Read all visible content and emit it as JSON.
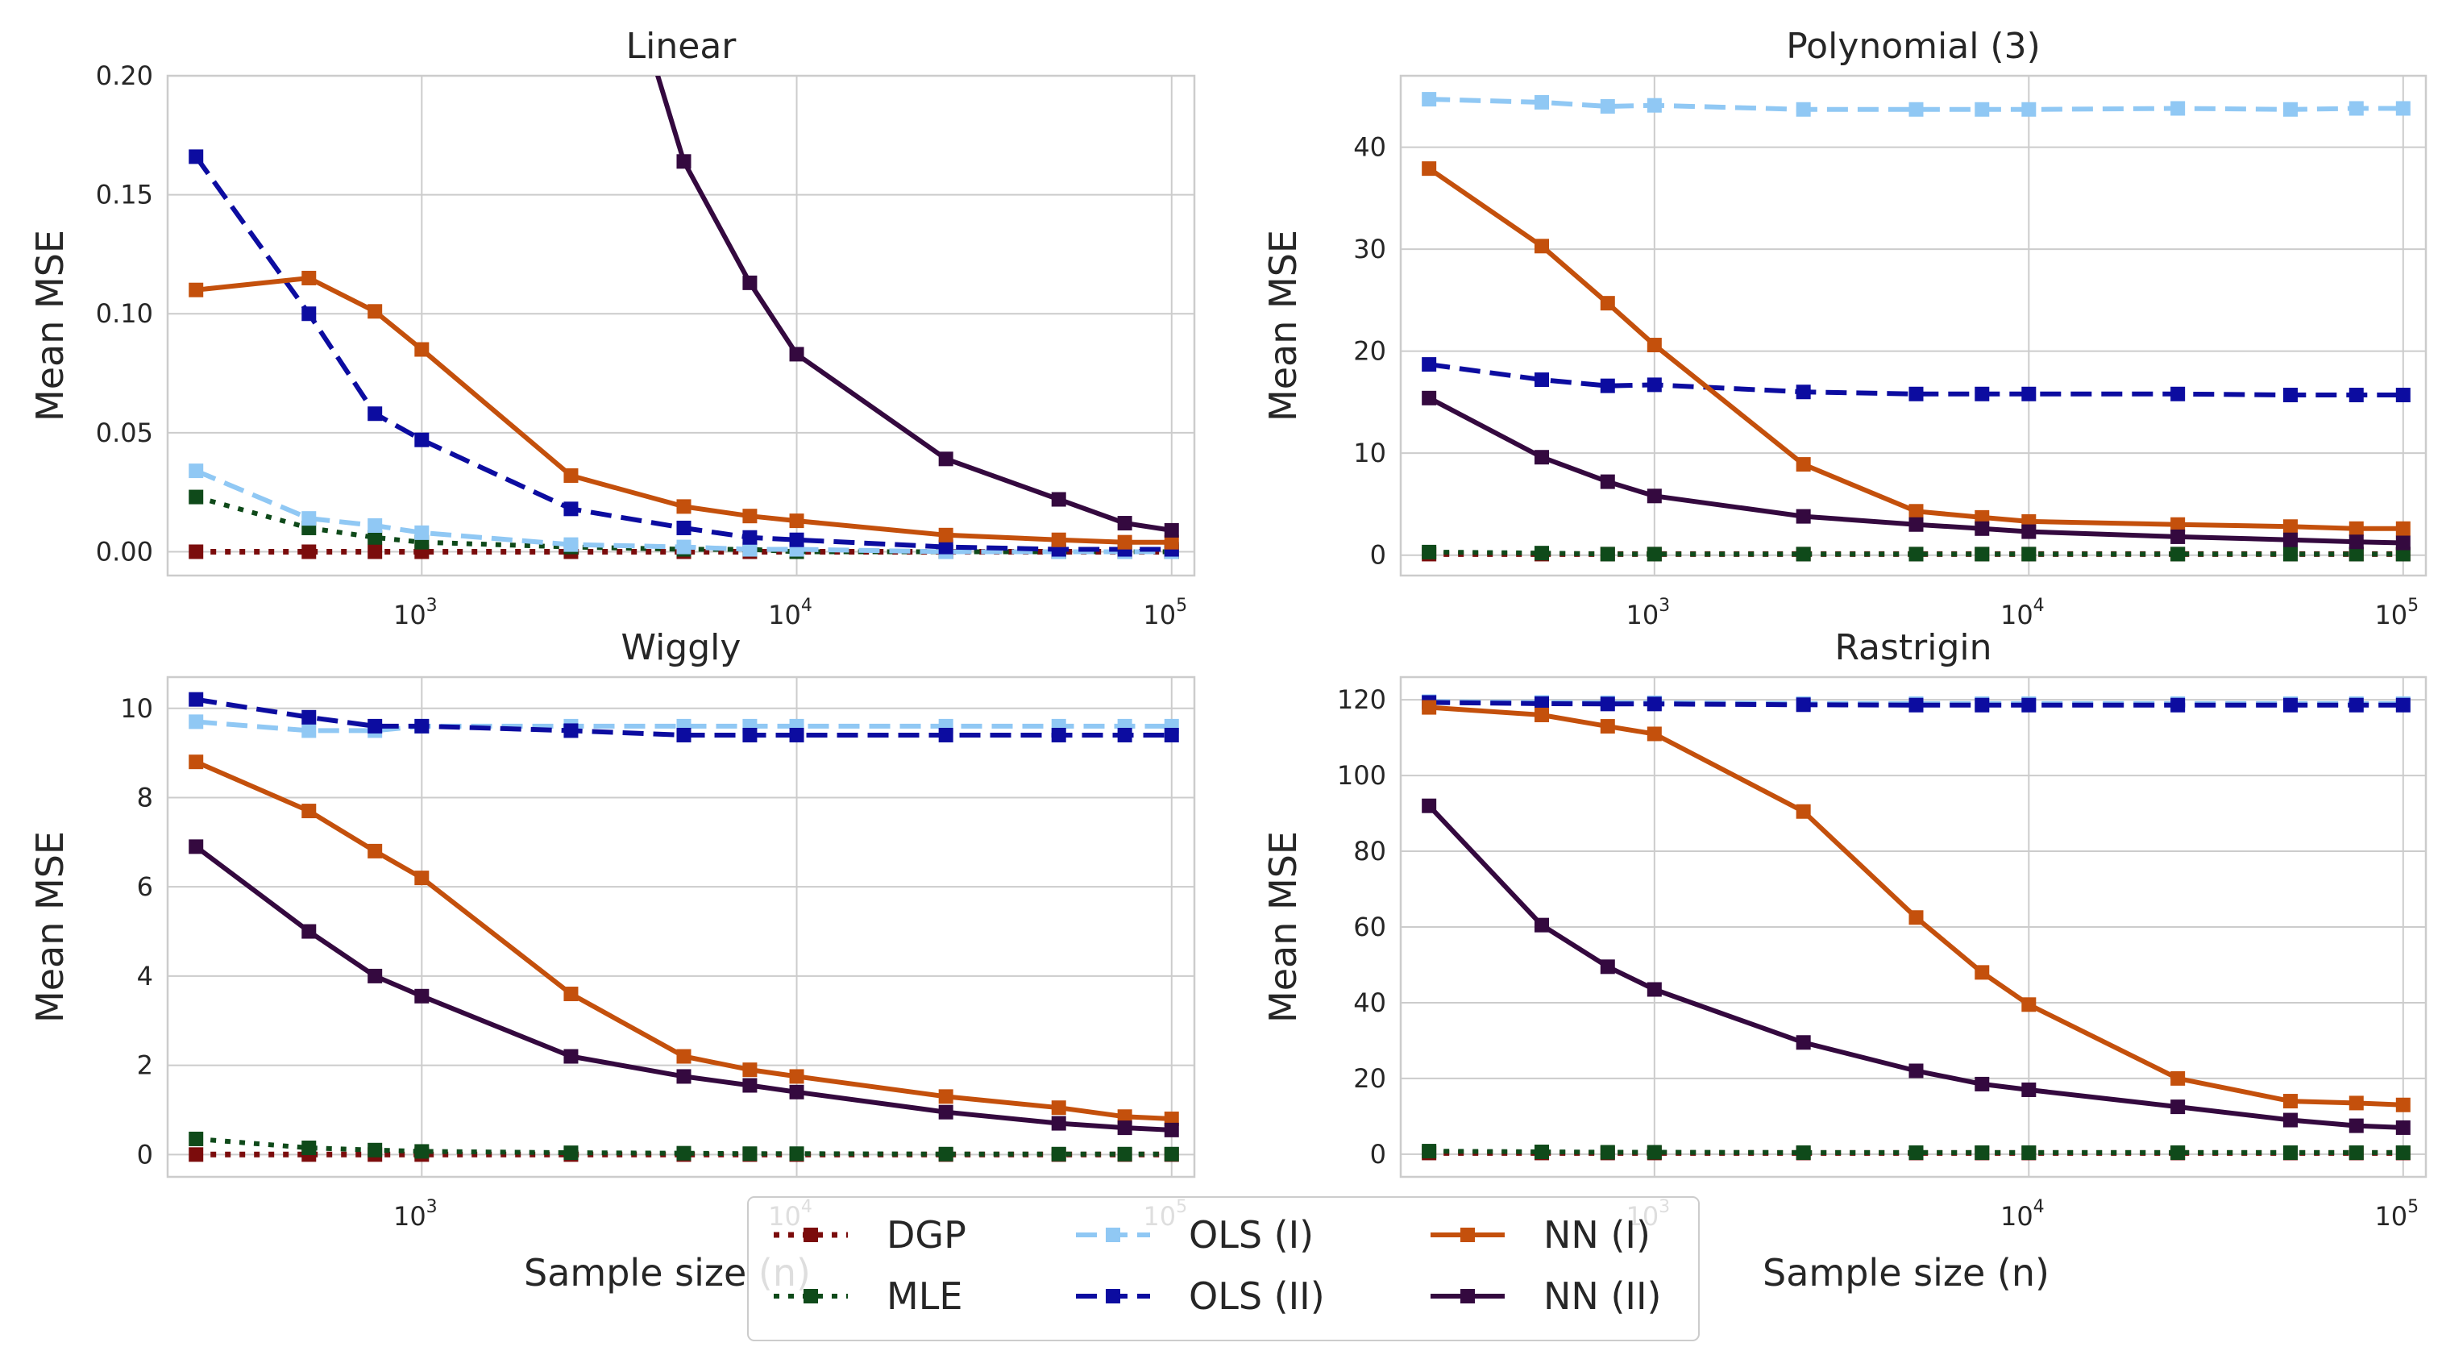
{
  "legend": {
    "items": [
      {
        "label": "DGP",
        "series": "dgp"
      },
      {
        "label": "MLE",
        "series": "mle"
      },
      {
        "label": "OLS (I)",
        "series": "ols1"
      },
      {
        "label": "OLS (II)",
        "series": "ols2"
      },
      {
        "label": "NN (I)",
        "series": "nn1"
      },
      {
        "label": "NN (II)",
        "series": "nn2"
      }
    ]
  },
  "styles": {
    "dgp": {
      "color": "#7b0c0c",
      "dash": "dot",
      "width": 7
    },
    "mle": {
      "color": "#0f4a1a",
      "dash": "dot",
      "width": 6
    },
    "ols1": {
      "color": "#90c8f4",
      "dash": "dash",
      "width": 6
    },
    "ols2": {
      "color": "#0c0ca0",
      "dash": "dash",
      "width": 6
    },
    "nn1": {
      "color": "#c4500c",
      "dash": "solid",
      "width": 6
    },
    "nn2": {
      "color": "#34093f",
      "dash": "solid",
      "width": 6
    }
  },
  "chart_data": [
    {
      "type": "line",
      "title": "Linear",
      "xlabel": "",
      "ylabel": "Mean MSE",
      "xscale": "log",
      "xlim": [
        210,
        115000
      ],
      "ylim": [
        -0.01,
        0.2
      ],
      "yticks": [
        0.0,
        0.05,
        0.1,
        0.15,
        0.2
      ],
      "ytick_labels": [
        "0.00",
        "0.05",
        "0.10",
        "0.15",
        "0.20"
      ],
      "xticks": [
        1000,
        10000,
        100000
      ],
      "x": [
        250,
        500,
        750,
        1000,
        2500,
        5000,
        7500,
        10000,
        25000,
        50000,
        75000,
        100000
      ],
      "series": [
        {
          "key": "dgp",
          "values": [
            0.0,
            0.0,
            0.0,
            0.0,
            0.0,
            0.0,
            0.0,
            0.0,
            0.0,
            0.0,
            0.0,
            0.0
          ]
        },
        {
          "key": "mle",
          "values": [
            0.023,
            0.01,
            0.006,
            0.004,
            0.002,
            0.001,
            0.001,
            0.0,
            0.0,
            0.0,
            0.0,
            0.0
          ]
        },
        {
          "key": "ols1",
          "values": [
            0.034,
            0.014,
            0.011,
            0.008,
            0.003,
            0.002,
            0.001,
            0.001,
            0.0,
            0.0,
            0.0,
            0.0
          ]
        },
        {
          "key": "ols2",
          "values": [
            0.166,
            0.1,
            0.058,
            0.047,
            0.018,
            0.01,
            0.006,
            0.005,
            0.002,
            0.001,
            0.001,
            0.001
          ]
        },
        {
          "key": "nn1",
          "values": [
            0.11,
            0.115,
            0.101,
            0.085,
            0.032,
            0.019,
            0.015,
            0.013,
            0.007,
            0.005,
            0.004,
            0.004
          ]
        },
        {
          "key": "nn2",
          "values": [
            null,
            null,
            null,
            null,
            0.32,
            0.164,
            0.113,
            0.083,
            0.039,
            0.022,
            0.012,
            0.009
          ]
        }
      ]
    },
    {
      "type": "line",
      "title": "Polynomial (3)",
      "xlabel": "Sample size (n)",
      "ylabel": "Mean MSE",
      "xscale": "log",
      "xlim": [
        210,
        115000
      ],
      "ylim": [
        -2,
        47
      ],
      "yticks": [
        0,
        10,
        20,
        30,
        40
      ],
      "ytick_labels": [
        "0",
        "10",
        "20",
        "30",
        "40"
      ],
      "xticks": [
        1000,
        10000,
        100000
      ],
      "x": [
        250,
        500,
        750,
        1000,
        2500,
        5000,
        7500,
        10000,
        25000,
        50000,
        75000,
        100000
      ],
      "series": [
        {
          "key": "dgp",
          "values": [
            0.1,
            0.1,
            0.1,
            0.1,
            0.1,
            0.1,
            0.1,
            0.1,
            0.1,
            0.1,
            0.1,
            0.1
          ]
        },
        {
          "key": "mle",
          "values": [
            0.3,
            0.2,
            0.1,
            0.1,
            0.1,
            0.1,
            0.1,
            0.1,
            0.1,
            0.1,
            0.1,
            0.1
          ]
        },
        {
          "key": "ols1",
          "values": [
            44.7,
            44.4,
            44.0,
            44.1,
            43.7,
            43.7,
            43.7,
            43.7,
            43.8,
            43.7,
            43.8,
            43.8
          ]
        },
        {
          "key": "ols2",
          "values": [
            18.7,
            17.2,
            16.6,
            16.7,
            16.0,
            15.8,
            15.8,
            15.8,
            15.8,
            15.7,
            15.7,
            15.7
          ]
        },
        {
          "key": "nn1",
          "values": [
            37.9,
            30.3,
            24.7,
            20.6,
            8.9,
            4.3,
            3.7,
            3.3,
            3.0,
            2.8,
            2.6,
            2.6
          ]
        },
        {
          "key": "nn2",
          "values": [
            15.4,
            9.6,
            7.2,
            5.8,
            3.8,
            3.0,
            2.6,
            2.3,
            1.8,
            1.5,
            1.3,
            1.2
          ]
        }
      ]
    },
    {
      "type": "line",
      "title": "Wiggly",
      "xlabel": "Sample size (n)",
      "ylabel": "Mean MSE",
      "xscale": "log",
      "xlim": [
        210,
        115000
      ],
      "ylim": [
        -0.5,
        10.7
      ],
      "yticks": [
        0,
        2,
        4,
        6,
        8,
        10
      ],
      "ytick_labels": [
        "0",
        "2",
        "4",
        "6",
        "8",
        "10"
      ],
      "xticks": [
        1000,
        10000,
        100000
      ],
      "x": [
        250,
        500,
        750,
        1000,
        2500,
        5000,
        7500,
        10000,
        25000,
        50000,
        75000,
        100000
      ],
      "series": [
        {
          "key": "dgp",
          "values": [
            0.0,
            0.0,
            0.0,
            0.0,
            0.0,
            0.0,
            0.0,
            0.0,
            0.0,
            0.0,
            0.0,
            0.0
          ]
        },
        {
          "key": "mle",
          "values": [
            0.35,
            0.15,
            0.1,
            0.07,
            0.04,
            0.03,
            0.02,
            0.02,
            0.01,
            0.01,
            0.01,
            0.01
          ]
        },
        {
          "key": "ols1",
          "values": [
            9.7,
            9.5,
            9.5,
            9.6,
            9.6,
            9.6,
            9.6,
            9.6,
            9.6,
            9.6,
            9.6,
            9.6
          ]
        },
        {
          "key": "ols2",
          "values": [
            10.2,
            9.8,
            9.6,
            9.6,
            9.5,
            9.4,
            9.4,
            9.4,
            9.4,
            9.4,
            9.4,
            9.4
          ]
        },
        {
          "key": "nn1",
          "values": [
            8.8,
            7.7,
            6.8,
            6.2,
            3.6,
            2.2,
            1.9,
            1.75,
            1.3,
            1.05,
            0.85,
            0.8
          ]
        },
        {
          "key": "nn2",
          "values": [
            6.9,
            5.0,
            4.0,
            3.55,
            2.2,
            1.75,
            1.55,
            1.4,
            0.95,
            0.7,
            0.6,
            0.55
          ]
        }
      ]
    },
    {
      "type": "line",
      "title": "Rastrigin",
      "xlabel": "Sample size (n)",
      "ylabel": "Mean MSE",
      "xscale": "log",
      "xlim": [
        210,
        115000
      ],
      "ylim": [
        -6,
        126
      ],
      "yticks": [
        0,
        20,
        40,
        60,
        80,
        100,
        120
      ],
      "ytick_labels": [
        "0",
        "20",
        "40",
        "60",
        "80",
        "100",
        "120"
      ],
      "xticks": [
        1000,
        10000,
        100000
      ],
      "x": [
        250,
        500,
        750,
        1000,
        2500,
        5000,
        7500,
        10000,
        25000,
        50000,
        75000,
        100000
      ],
      "series": [
        {
          "key": "dgp",
          "values": [
            0.3,
            0.3,
            0.3,
            0.3,
            0.3,
            0.3,
            0.3,
            0.3,
            0.3,
            0.3,
            0.3,
            0.3
          ]
        },
        {
          "key": "mle",
          "values": [
            0.8,
            0.6,
            0.5,
            0.5,
            0.4,
            0.4,
            0.4,
            0.4,
            0.4,
            0.4,
            0.4,
            0.4
          ]
        },
        {
          "key": "ols1",
          "values": [
            119.5,
            119.3,
            119.2,
            119.2,
            119.0,
            119.0,
            119.0,
            119.0,
            119.0,
            119.0,
            119.0,
            119.0
          ]
        },
        {
          "key": "ols2",
          "values": [
            119.3,
            119.0,
            118.9,
            118.9,
            118.7,
            118.6,
            118.6,
            118.6,
            118.6,
            118.6,
            118.6,
            118.6
          ]
        },
        {
          "key": "nn1",
          "values": [
            118.0,
            116.0,
            113.0,
            111.0,
            90.5,
            62.5,
            48.0,
            39.5,
            20.0,
            14.0,
            13.5,
            13.0
          ]
        },
        {
          "key": "nn2",
          "values": [
            92.0,
            60.5,
            49.5,
            43.5,
            29.5,
            22.0,
            18.5,
            17.0,
            12.5,
            9.0,
            7.5,
            7.0
          ]
        }
      ]
    }
  ]
}
